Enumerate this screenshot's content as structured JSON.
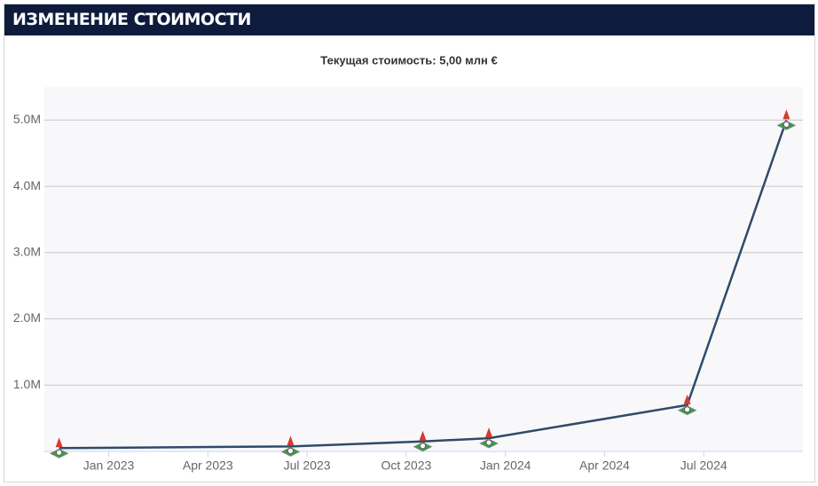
{
  "header": {
    "title": "ИЗМЕНЕНИЕ СТОИМОСТИ"
  },
  "chart_data": {
    "type": "line",
    "subtitle": "Текущая стоимость: 5,00 млн €",
    "x": [
      "2022-11",
      "2023-06",
      "2023-10",
      "2023-12",
      "2024-06",
      "2024-09"
    ],
    "series": [
      {
        "color": "#2f4a6a",
        "values": [
          50000,
          75000,
          150000,
          200000,
          700000,
          5000000
        ]
      }
    ],
    "xlim": [
      "2022-11",
      "2024-10"
    ],
    "xticks": [
      {
        "value": "2023-01",
        "label": "Jan 2023"
      },
      {
        "value": "2023-04",
        "label": "Apr 2023"
      },
      {
        "value": "2023-07",
        "label": "Jul 2023"
      },
      {
        "value": "2023-10",
        "label": "Oct 2023"
      },
      {
        "value": "2024-01",
        "label": "Jan 2024"
      },
      {
        "value": "2024-04",
        "label": "Apr 2024"
      },
      {
        "value": "2024-07",
        "label": "Jul 2024"
      }
    ],
    "ylim": [
      0,
      5500000
    ],
    "yticks": [
      {
        "value": 1000000,
        "label": "1.0M"
      },
      {
        "value": 2000000,
        "label": "2.0M"
      },
      {
        "value": 3000000,
        "label": "3.0M"
      },
      {
        "value": 4000000,
        "label": "4.0M"
      },
      {
        "value": 5000000,
        "label": "5.0M"
      }
    ],
    "grid": true
  }
}
